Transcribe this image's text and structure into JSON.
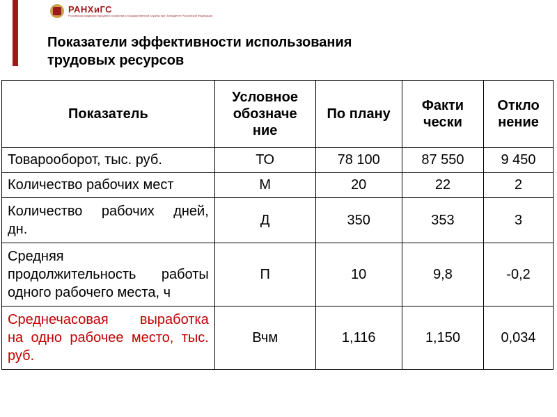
{
  "logo": {
    "title": "РАНХиГС",
    "subtitle": "Российская академия народного хозяйства и государственной службы при Президенте Российской Федерации"
  },
  "title": {
    "line1": "Показатели эффективности использования",
    "line2": "трудовых ресурсов"
  },
  "table": {
    "headers": {
      "indicator": "Показатель",
      "symbol_l1": "Условное",
      "symbol_l2": "обозначе",
      "symbol_l3": "ние",
      "plan": "По плану",
      "actual_l1": "Факти",
      "actual_l2": "чески",
      "deviation_l1": "Откло",
      "deviation_l2": "нение"
    },
    "rows": [
      {
        "indicator": "Товарооборот, тыс. руб.",
        "symbol": "ТО",
        "plan": "78 100",
        "actual": "87 550",
        "deviation": "9 450",
        "lines": 1
      },
      {
        "indicator": "Количество рабочих мест",
        "symbol": "М",
        "plan": "20",
        "actual": "22",
        "deviation": "2",
        "lines": 1
      },
      {
        "indicator_l1": "Количество рабочих дней,",
        "indicator_l2": "дн.",
        "symbol": "Д",
        "plan": "350",
        "actual": "353",
        "deviation": "3",
        "lines": 2
      },
      {
        "indicator_l1": "Средняя",
        "indicator_l2": "продолжительность работы",
        "indicator_l3": "одного рабочего места, ч",
        "symbol": "П",
        "plan": "10",
        "actual": "9,8",
        "deviation": "-0,2",
        "lines": 3
      },
      {
        "indicator_l1": "Среднечасовая выработка",
        "indicator_l2": "на одно рабочее место, тыс.",
        "indicator_l3": "руб.",
        "symbol": "Вчм",
        "plan": "1,116",
        "actual": "1,150",
        "deviation": "0,034",
        "lines": 3,
        "highlighted": true
      }
    ]
  },
  "colors": {
    "accent": "#9d1a1a",
    "text_highlight": "#c00000",
    "border": "#000000",
    "background": "#ffffff"
  }
}
